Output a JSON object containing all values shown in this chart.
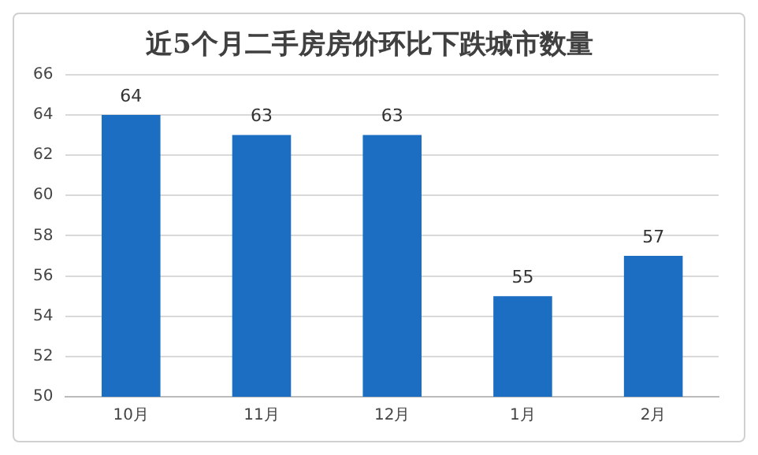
{
  "chart_data": {
    "type": "bar",
    "title": "近5个月二手房房价环比下跌城市数量",
    "categories": [
      "10月",
      "11月",
      "12月",
      "1月",
      "2月"
    ],
    "values": [
      64,
      63,
      63,
      55,
      57
    ],
    "color": "#1b6ec2",
    "ylim": [
      50,
      66
    ],
    "yticks": [
      50,
      52,
      54,
      56,
      58,
      60,
      62,
      64,
      66
    ],
    "grid": "y",
    "data_labels": true,
    "legend": false
  }
}
